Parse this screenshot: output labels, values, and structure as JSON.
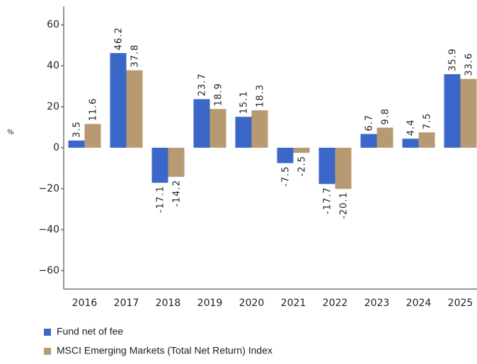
{
  "chart_data": {
    "type": "bar",
    "ylabel": "%",
    "categories": [
      "2016",
      "2017",
      "2018",
      "2019",
      "2020",
      "2021",
      "2022",
      "2023",
      "2024",
      "2025"
    ],
    "series": [
      {
        "name": "Fund net of fee",
        "color": "#3a67c8",
        "values": [
          3.5,
          46.2,
          -17.1,
          23.7,
          15.1,
          -7.5,
          -17.7,
          6.7,
          4.4,
          35.9
        ]
      },
      {
        "name": "MSCI Emerging Markets (Total Net Return) Index",
        "color": "#b89a72",
        "values": [
          11.6,
          37.8,
          -14.2,
          18.9,
          18.3,
          -2.5,
          -20.1,
          9.8,
          7.5,
          33.6
        ]
      }
    ],
    "ylim": [
      -69,
      69
    ],
    "yticks": [
      {
        "value": -60,
        "label": "−60"
      },
      {
        "value": -40,
        "label": "−40"
      },
      {
        "value": -20,
        "label": "−20"
      },
      0,
      20,
      40,
      60
    ],
    "grid": false,
    "legend": "bottom"
  }
}
